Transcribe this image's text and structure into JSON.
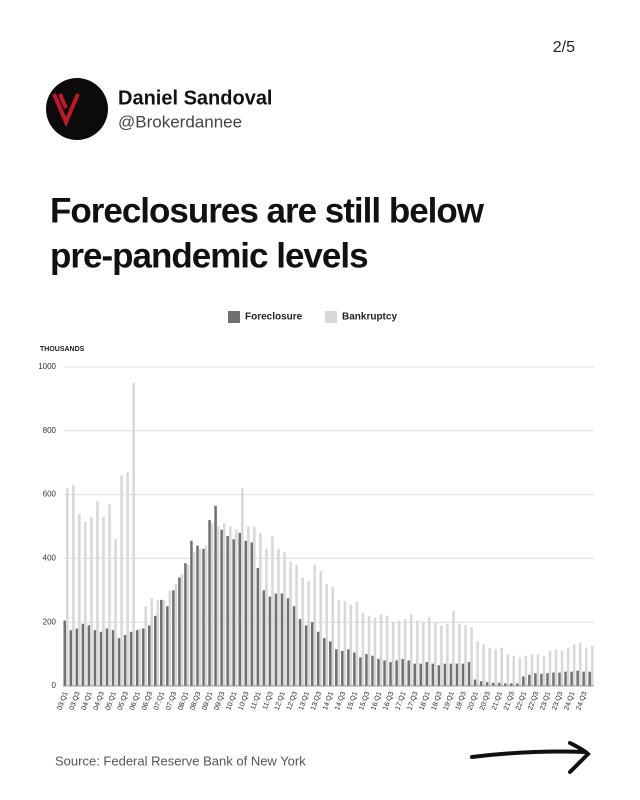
{
  "post": {
    "page": "2/5",
    "name": "Daniel Sandoval",
    "handle": "@Brokerdannee",
    "headline": [
      "Foreclosures are still below",
      "pre-pandemic levels"
    ],
    "source": "Source: Federal Reserve Bank of New York"
  },
  "chart_data": {
    "type": "bar",
    "y_label": "THOUSANDS",
    "grid": true,
    "legend": "top",
    "categories": [
      "03:Q1",
      null,
      "03:Q3",
      null,
      "04:Q1",
      null,
      "04:Q3",
      null,
      "05:Q1",
      null,
      "05:Q3",
      null,
      "06:Q1",
      null,
      "06:Q3",
      null,
      "07:Q1",
      null,
      "07:Q3",
      null,
      "08:Q1",
      null,
      "08:Q3",
      null,
      "09:Q1",
      null,
      "09:Q3",
      null,
      "10:Q1",
      null,
      "10:Q3",
      null,
      "11:Q1",
      null,
      "11:Q3",
      null,
      "12:Q1",
      null,
      "12:Q3",
      null,
      "13:Q1",
      null,
      "13:Q3",
      null,
      "14:Q1",
      null,
      "14:Q3",
      null,
      "15:Q1",
      null,
      "15:Q3",
      null,
      "16:Q1",
      null,
      "16:Q3",
      null,
      "17:Q1",
      null,
      "17:Q3",
      null,
      "18:Q1",
      null,
      "18:Q3",
      null,
      "19:Q1",
      null,
      "19:Q3",
      null,
      "20:Q1",
      null,
      "20:Q3",
      null,
      "21:Q1",
      null,
      "21:Q3",
      null,
      "22:Q1",
      null,
      "22:Q3",
      null,
      "23:Q1",
      null,
      "23:Q3",
      null,
      "24:Q1",
      null,
      "24:Q3",
      null
    ],
    "series": [
      {
        "name": "Foreclosure",
        "color": "#707070",
        "values": [
          205,
          175,
          180,
          195,
          190,
          175,
          170,
          180,
          175,
          150,
          160,
          170,
          175,
          180,
          190,
          220,
          270,
          250,
          300,
          340,
          385,
          455,
          440,
          430,
          520,
          565,
          490,
          470,
          460,
          480,
          455,
          450,
          370,
          300,
          280,
          290,
          290,
          275,
          250,
          210,
          190,
          200,
          170,
          150,
          140,
          115,
          110,
          115,
          105,
          90,
          100,
          95,
          85,
          80,
          75,
          80,
          85,
          80,
          70,
          70,
          75,
          70,
          65,
          70,
          70,
          70,
          70,
          75,
          20,
          15,
          12,
          10,
          10,
          8,
          8,
          8,
          30,
          35,
          40,
          38,
          40,
          42,
          42,
          45,
          45,
          48,
          45,
          45
        ]
      },
      {
        "name": "Bankruptcy",
        "color": "#d8d8d8",
        "values": [
          620,
          630,
          540,
          515,
          530,
          580,
          530,
          570,
          460,
          660,
          670,
          950,
          180,
          250,
          275,
          270,
          270,
          300,
          320,
          350,
          380,
          420,
          430,
          440,
          510,
          500,
          510,
          500,
          490,
          620,
          500,
          500,
          480,
          430,
          470,
          430,
          420,
          390,
          380,
          340,
          330,
          380,
          360,
          320,
          310,
          270,
          265,
          255,
          265,
          230,
          220,
          215,
          225,
          220,
          200,
          205,
          210,
          225,
          205,
          200,
          215,
          200,
          190,
          195,
          235,
          195,
          190,
          185,
          140,
          130,
          120,
          115,
          120,
          100,
          95,
          90,
          95,
          100,
          100,
          95,
          110,
          115,
          110,
          120,
          130,
          135,
          120,
          125
        ]
      }
    ],
    "ylim": [
      0,
      1000
    ],
    "yticks": [
      0,
      200,
      400,
      600,
      800,
      1000
    ]
  }
}
